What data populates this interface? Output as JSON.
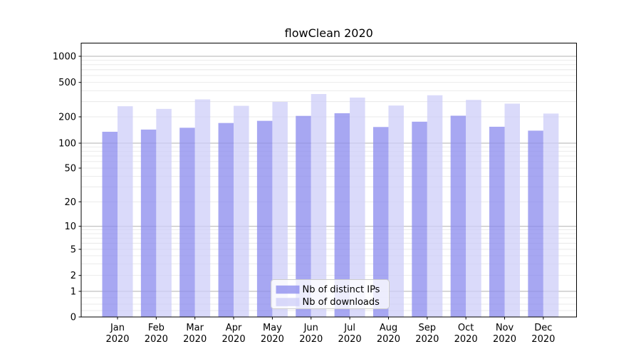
{
  "figure": {
    "title": "flowClean 2020"
  },
  "colors": {
    "ips_bar": "rgba(137,137,237,0.75)",
    "downloads_bar": "rgba(206,206,248,0.75)",
    "grid_major": "#b2b2b2",
    "grid_minor": "#e8e8e8",
    "axis_line": "#000000",
    "text": "#000000",
    "legend_border": "#cccccc",
    "legend_bg": "rgba(255,255,255,0.8)"
  },
  "chart_data": {
    "type": "bar",
    "title": "flowClean 2020",
    "categories": [
      "Jan 2020",
      "Feb 2020",
      "Mar 2020",
      "Apr 2020",
      "May 2020",
      "Jun 2020",
      "Jul 2020",
      "Aug 2020",
      "Sep 2020",
      "Oct 2020",
      "Nov 2020",
      "Dec 2020"
    ],
    "x_tick_months": [
      "Jan",
      "Feb",
      "Mar",
      "Apr",
      "May",
      "Jun",
      "Jul",
      "Aug",
      "Sep",
      "Oct",
      "Nov",
      "Dec"
    ],
    "x_tick_year": "2020",
    "series": [
      {
        "name": "Nb of distinct IPs",
        "values": [
          135,
          143,
          150,
          170,
          180,
          205,
          220,
          153,
          176,
          206,
          154,
          139
        ]
      },
      {
        "name": "Nb of downloads",
        "values": [
          265,
          247,
          318,
          268,
          298,
          367,
          334,
          270,
          355,
          314,
          284,
          218
        ]
      }
    ],
    "yscale": "log above 1, linear 0 to 1",
    "ylim": [
      0,
      1400
    ],
    "y_ticks": [
      0,
      1,
      2,
      5,
      10,
      20,
      50,
      100,
      200,
      500,
      1000
    ],
    "y_major_gridlines": [
      1,
      10,
      100,
      1000
    ],
    "y_minor_gridlines": [
      0.25,
      0.5,
      0.75,
      2,
      3,
      4,
      5,
      6,
      7,
      8,
      9,
      20,
      30,
      40,
      50,
      60,
      70,
      80,
      90,
      200,
      300,
      400,
      500,
      600,
      700,
      800,
      900
    ],
    "xlabel": "",
    "ylabel": "",
    "grid": true,
    "legend": {
      "position": "lower center",
      "entries": [
        "Nb of distinct IPs",
        "Nb of downloads"
      ]
    }
  }
}
